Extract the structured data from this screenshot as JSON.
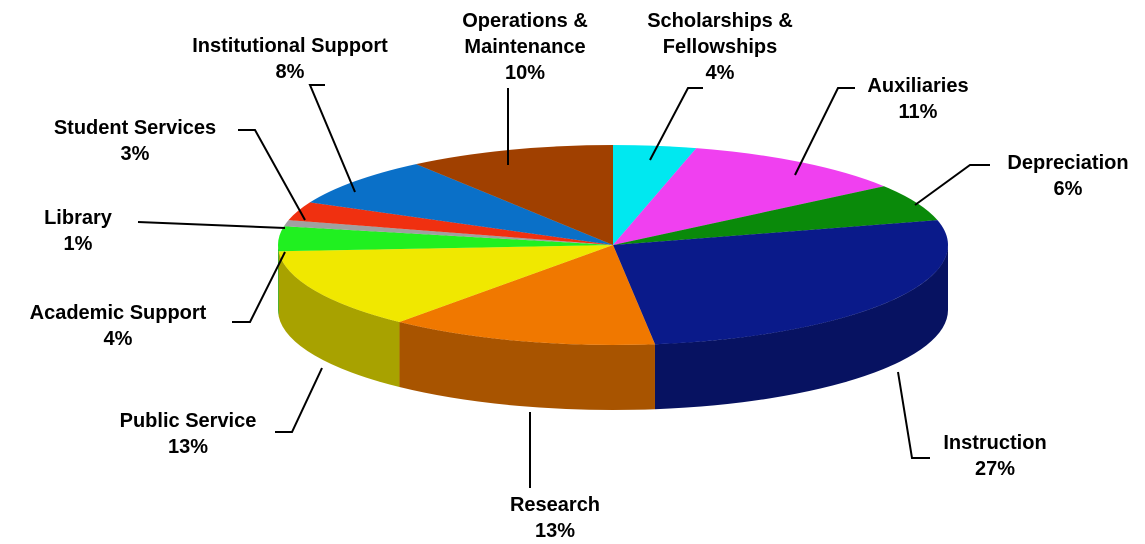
{
  "chart_data": {
    "type": "pie",
    "categories": [
      "Scholarships & Fellowships",
      "Auxiliaries",
      "Depreciation",
      "Instruction",
      "Research",
      "Public Service",
      "Academic Support",
      "Library",
      "Student Services",
      "Institutional Support",
      "Operations & Maintenance"
    ],
    "values": [
      4,
      11,
      6,
      27,
      13,
      13,
      4,
      1,
      3,
      8,
      10
    ],
    "value_labels": [
      "4%",
      "11%",
      "6%",
      "27%",
      "13%",
      "13%",
      "4%",
      "1%",
      "3%",
      "8%",
      "10%"
    ],
    "colors": [
      "#00e8f0",
      "#f040f0",
      "#0a8a0a",
      "#0a1a8a",
      "#f07800",
      "#f0e800",
      "#20f020",
      "#a0a0a0",
      "#f03010",
      "#0a70c8",
      "#a04000"
    ]
  }
}
